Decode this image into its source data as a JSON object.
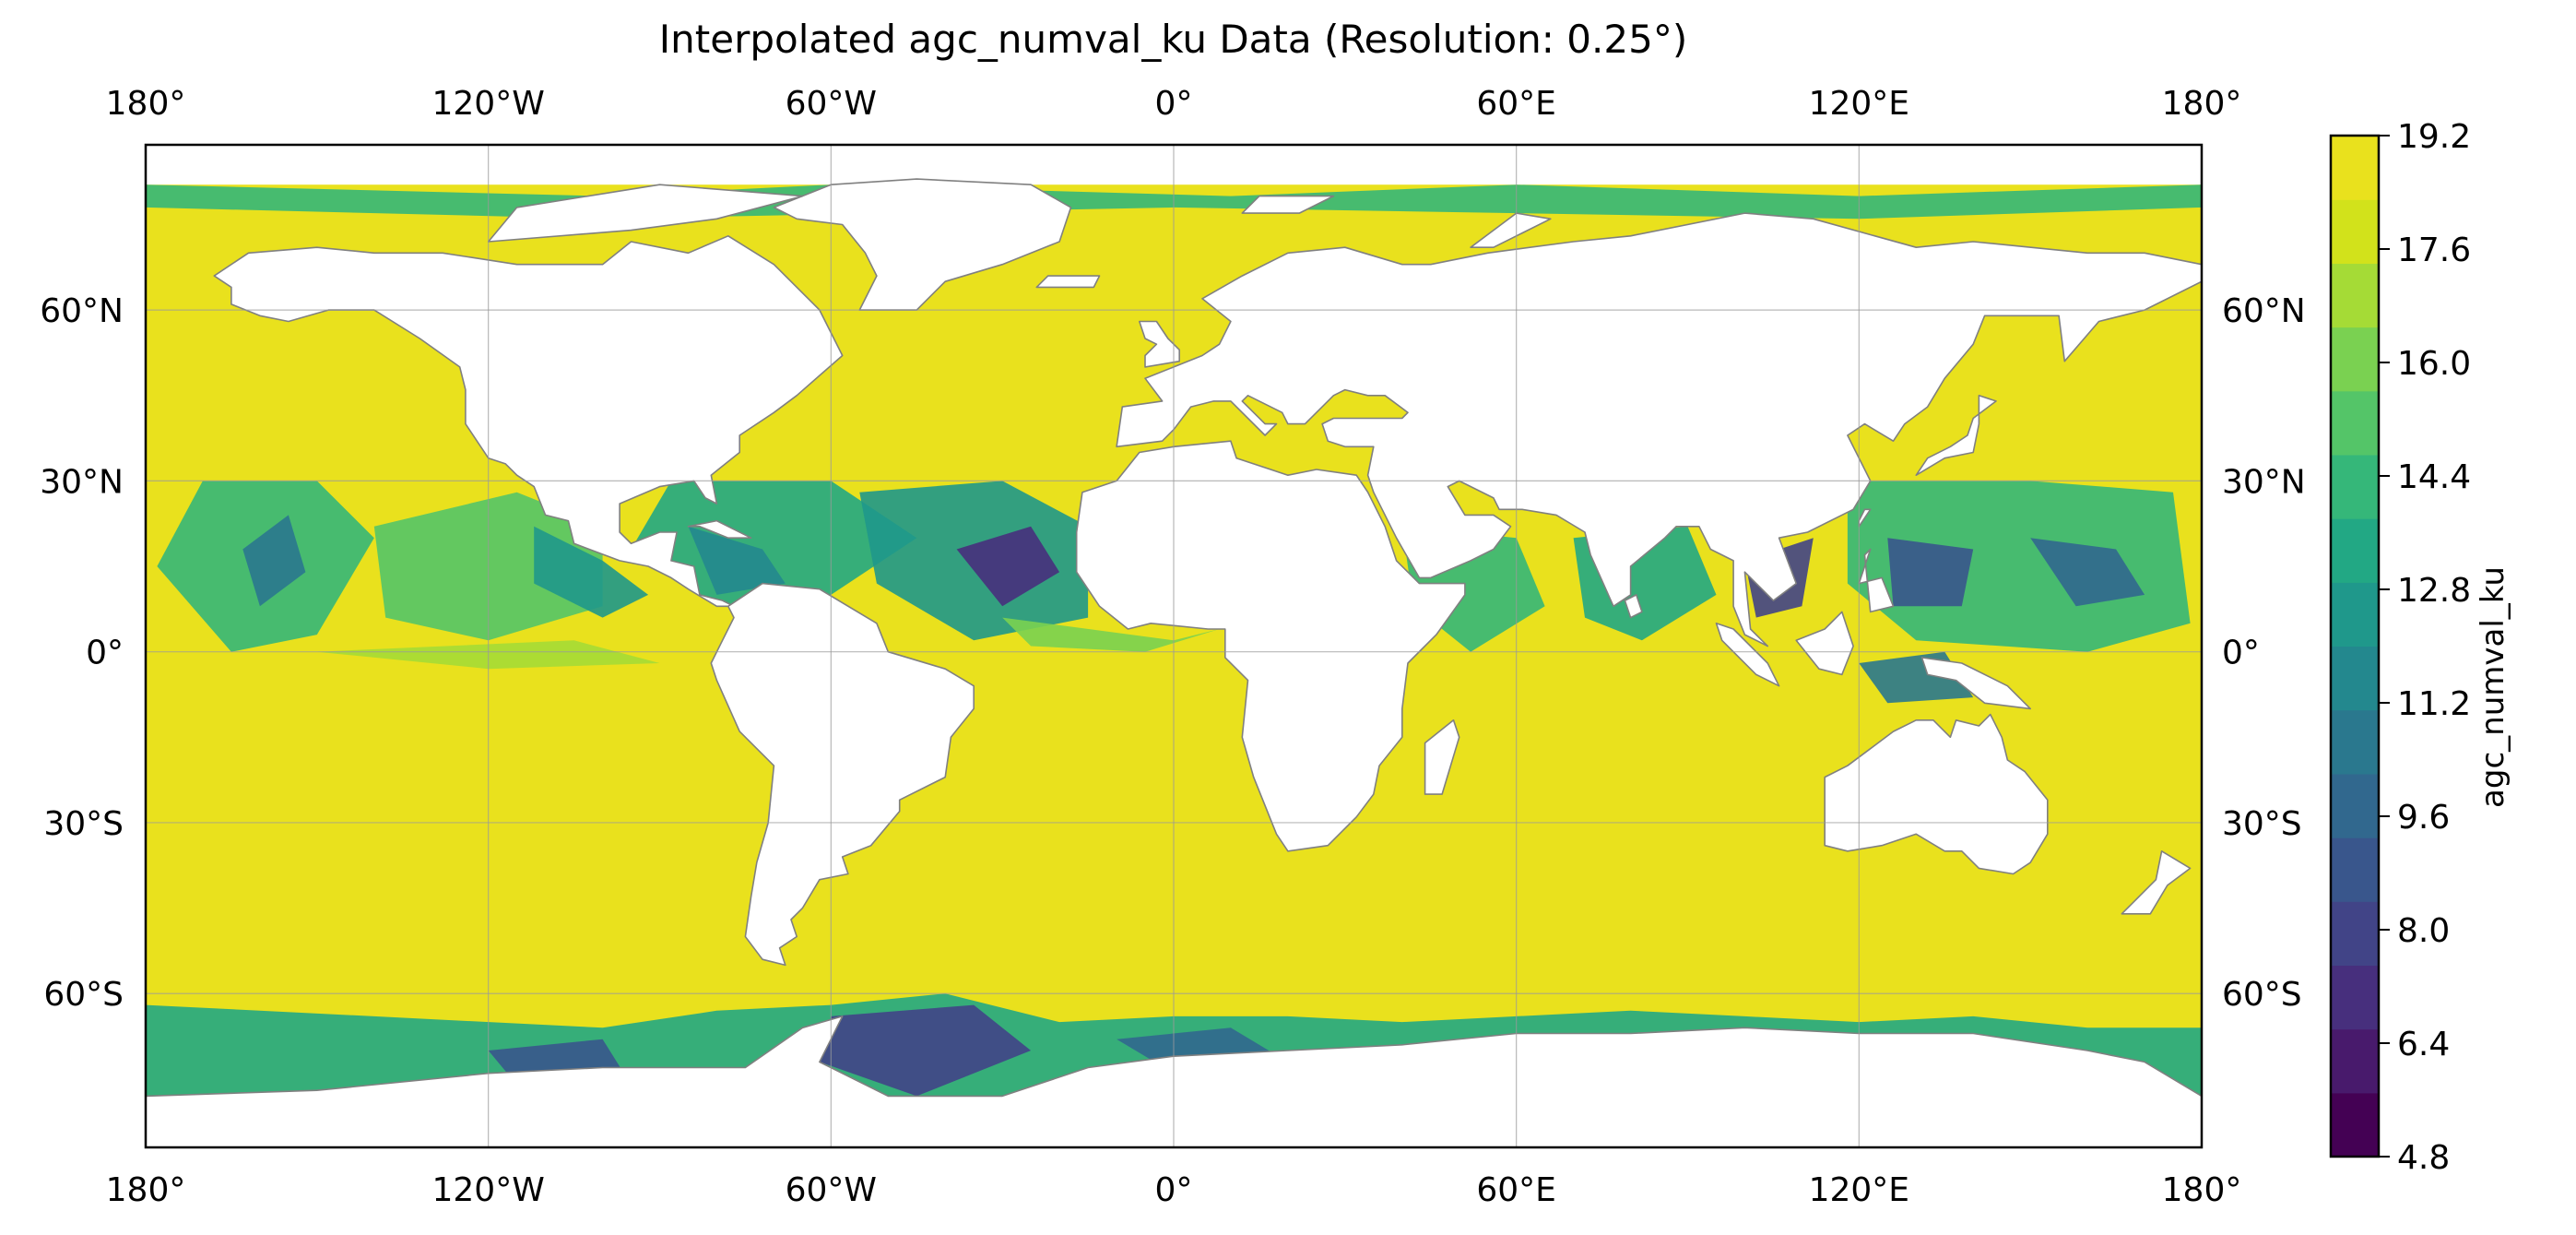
{
  "title": "Interpolated agc_numval_ku Data (Resolution: 0.25°)",
  "colorbar": {
    "label": "agc_numval_ku",
    "min": 4.8,
    "max": 19.2,
    "ticks": [
      "19.2",
      "17.6",
      "16.0",
      "14.4",
      "12.8",
      "11.2",
      "9.6",
      "8.0",
      "6.4",
      "4.8"
    ],
    "palette": [
      "#440154",
      "#481a6c",
      "#472f7d",
      "#414487",
      "#39568c",
      "#31688e",
      "#2a788e",
      "#23888e",
      "#1f988b",
      "#22a884",
      "#35b779",
      "#54c568",
      "#7ad151",
      "#a5db36",
      "#d2e21b",
      "#e9e11d"
    ]
  },
  "map": {
    "x_ticks": [
      "180°",
      "120°W",
      "60°W",
      "0°",
      "60°E",
      "120°E",
      "180°"
    ],
    "y_ticks_left": [
      "60°N",
      "30°N",
      "0°",
      "30°S",
      "60°S"
    ],
    "y_ticks_right": [
      "60°N",
      "30°N",
      "0°",
      "30°S",
      "60°S"
    ],
    "lon_range": [
      -180,
      180
    ],
    "lat_range": [
      -87,
      89
    ],
    "ocean_color": "#e9e11d",
    "land_color": "#ffffff",
    "coast_color": "#808080",
    "grid": true
  }
}
